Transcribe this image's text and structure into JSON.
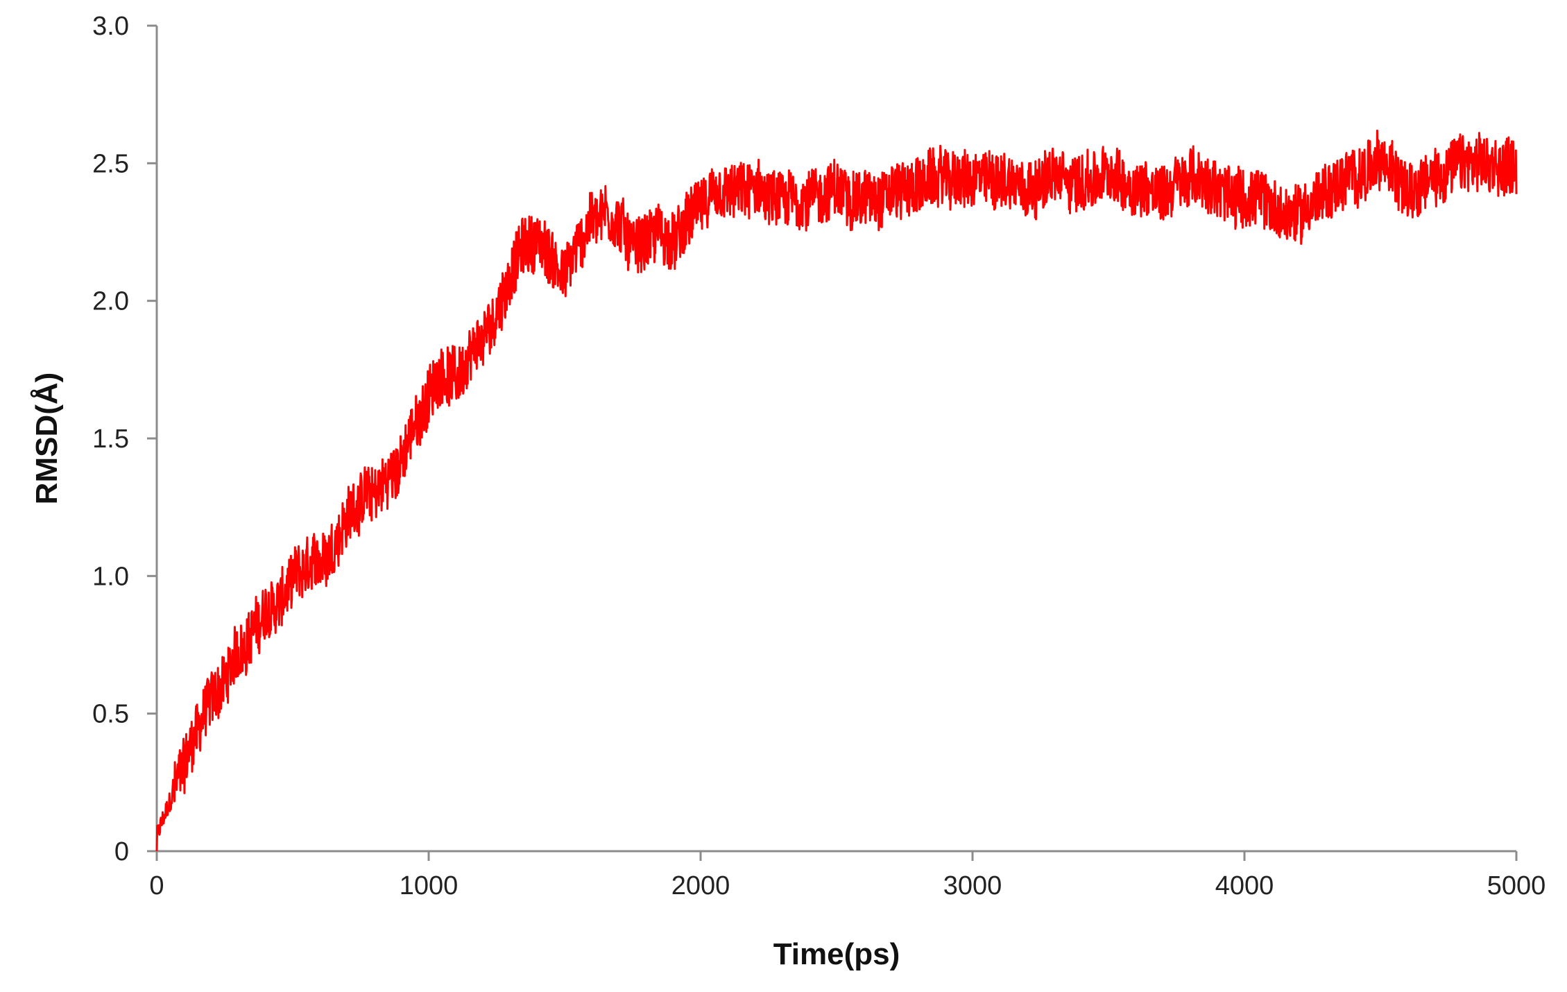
{
  "chart_data": {
    "type": "line",
    "title": "",
    "xlabel": "Time(ps)",
    "ylabel": "RMSD(Å)",
    "xlim": [
      0,
      5000
    ],
    "ylim": [
      0,
      3.0
    ],
    "x_ticks": [
      0,
      1000,
      2000,
      3000,
      4000,
      5000
    ],
    "x_tick_labels": [
      "0",
      "1000",
      "2000",
      "3000",
      "4000",
      "5000"
    ],
    "y_ticks": [
      0,
      0.5,
      1.0,
      1.5,
      2.0,
      2.5,
      3.0
    ],
    "y_tick_labels": [
      "0",
      "0.5",
      "1.0",
      "1.5",
      "2.0",
      "2.5",
      "3.0"
    ],
    "grid": false,
    "legend": "none",
    "series": [
      {
        "color": "#ff0000",
        "noise_amplitude": 0.13,
        "x": [
          0,
          25,
          50,
          100,
          150,
          200,
          250,
          300,
          350,
          400,
          450,
          500,
          550,
          600,
          650,
          700,
          750,
          800,
          850,
          900,
          950,
          1000,
          1050,
          1100,
          1150,
          1200,
          1250,
          1300,
          1350,
          1400,
          1450,
          1500,
          1550,
          1600,
          1650,
          1700,
          1750,
          1800,
          1850,
          1900,
          1950,
          2000,
          2100,
          2200,
          2300,
          2400,
          2500,
          2600,
          2700,
          2800,
          2900,
          3000,
          3100,
          3200,
          3300,
          3400,
          3500,
          3600,
          3700,
          3800,
          3900,
          4000,
          4100,
          4150,
          4200,
          4300,
          4400,
          4500,
          4600,
          4700,
          4800,
          4900,
          5000
        ],
        "y": [
          0.05,
          0.12,
          0.18,
          0.32,
          0.45,
          0.55,
          0.62,
          0.72,
          0.8,
          0.86,
          0.9,
          0.98,
          1.02,
          1.05,
          1.12,
          1.22,
          1.28,
          1.3,
          1.35,
          1.42,
          1.55,
          1.65,
          1.75,
          1.72,
          1.78,
          1.85,
          1.95,
          2.1,
          2.2,
          2.22,
          2.15,
          2.1,
          2.2,
          2.3,
          2.33,
          2.28,
          2.2,
          2.22,
          2.25,
          2.2,
          2.28,
          2.35,
          2.38,
          2.4,
          2.35,
          2.38,
          2.4,
          2.37,
          2.4,
          2.42,
          2.45,
          2.43,
          2.45,
          2.42,
          2.45,
          2.43,
          2.45,
          2.42,
          2.4,
          2.45,
          2.4,
          2.38,
          2.35,
          2.3,
          2.32,
          2.4,
          2.45,
          2.5,
          2.42,
          2.45,
          2.5,
          2.48,
          2.5
        ]
      }
    ]
  }
}
